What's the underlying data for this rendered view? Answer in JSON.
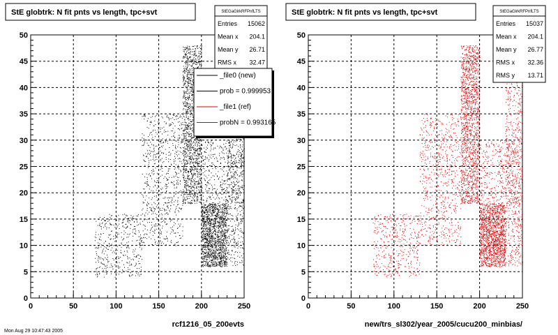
{
  "chart_data": [
    {
      "type": "scatter",
      "title": "StE globtrk: N fit pnts vs length, tpc+svt",
      "xlabel": "rcf1216_05_200evts",
      "ylabel": "",
      "xlim": [
        0,
        250
      ],
      "ylim": [
        0,
        50
      ],
      "xticks": [
        "0",
        "50",
        "100",
        "150",
        "200",
        "250"
      ],
      "yticks": [
        "0",
        "5",
        "10",
        "15",
        "20",
        "25",
        "30",
        "35",
        "40",
        "45",
        "50"
      ],
      "grid": true,
      "marker_color": "#000000",
      "stats": {
        "name": "StEGaGlrkRFPnfLTS",
        "rows": [
          {
            "label": "Entries",
            "value": "15062"
          },
          {
            "label": "Mean x",
            "value": "204.1"
          },
          {
            "label": "Mean y",
            "value": "26.71"
          },
          {
            "label": "RMS x",
            "value": "32.47"
          }
        ]
      },
      "legend": {
        "placement": "right",
        "entries": [
          {
            "label": "_file0 (new)",
            "color": "#000000"
          },
          {
            "label": "prob = 0.999953",
            "color": "#000000"
          },
          {
            "label": "_file1 (ref)",
            "color": "#e00000"
          },
          {
            "label": "probN = 0.993165",
            "color": "#e00000"
          }
        ]
      },
      "density_clusters": [
        {
          "x": [
            178,
            200
          ],
          "y": [
            18,
            48
          ],
          "weight": 0.3
        },
        {
          "x": [
            200,
            230
          ],
          "y": [
            6,
            18
          ],
          "weight": 0.28
        },
        {
          "x": [
            230,
            250
          ],
          "y": [
            6,
            45
          ],
          "weight": 0.12
        },
        {
          "x": [
            130,
            178
          ],
          "y": [
            10,
            35
          ],
          "weight": 0.14
        },
        {
          "x": [
            75,
            130
          ],
          "y": [
            4,
            16
          ],
          "weight": 0.08
        },
        {
          "x": [
            200,
            250
          ],
          "y": [
            18,
            30
          ],
          "weight": 0.08
        }
      ]
    },
    {
      "type": "scatter",
      "title": "StE globtrk: N fit pnts vs length, tpc+svt",
      "xlabel": "new/trs_sl302/year_2005/cucu200_minbias/",
      "ylabel": "",
      "xlim": [
        0,
        250
      ],
      "ylim": [
        0,
        50
      ],
      "xticks": [
        "0",
        "50",
        "100",
        "150",
        "200",
        "250"
      ],
      "yticks": [
        "0",
        "5",
        "10",
        "15",
        "20",
        "25",
        "30",
        "35",
        "40",
        "45",
        "50"
      ],
      "grid": true,
      "marker_color": "#e00000",
      "stats": {
        "name": "StEGaGlrkRFPnfLTS",
        "rows": [
          {
            "label": "Entries",
            "value": "15037"
          },
          {
            "label": "Mean x",
            "value": "204.1"
          },
          {
            "label": "Mean y",
            "value": "26.77"
          },
          {
            "label": "RMS x",
            "value": "32.36"
          },
          {
            "label": "RMS y",
            "value": "13.71"
          }
        ]
      },
      "density_clusters": [
        {
          "x": [
            178,
            200
          ],
          "y": [
            18,
            48
          ],
          "weight": 0.3
        },
        {
          "x": [
            200,
            230
          ],
          "y": [
            6,
            18
          ],
          "weight": 0.28
        },
        {
          "x": [
            230,
            250
          ],
          "y": [
            6,
            45
          ],
          "weight": 0.12
        },
        {
          "x": [
            130,
            178
          ],
          "y": [
            10,
            35
          ],
          "weight": 0.14
        },
        {
          "x": [
            75,
            130
          ],
          "y": [
            4,
            16
          ],
          "weight": 0.08
        },
        {
          "x": [
            200,
            250
          ],
          "y": [
            18,
            30
          ],
          "weight": 0.08
        }
      ]
    }
  ],
  "footer_text": "Mon Aug 29 10:47:43 2005"
}
